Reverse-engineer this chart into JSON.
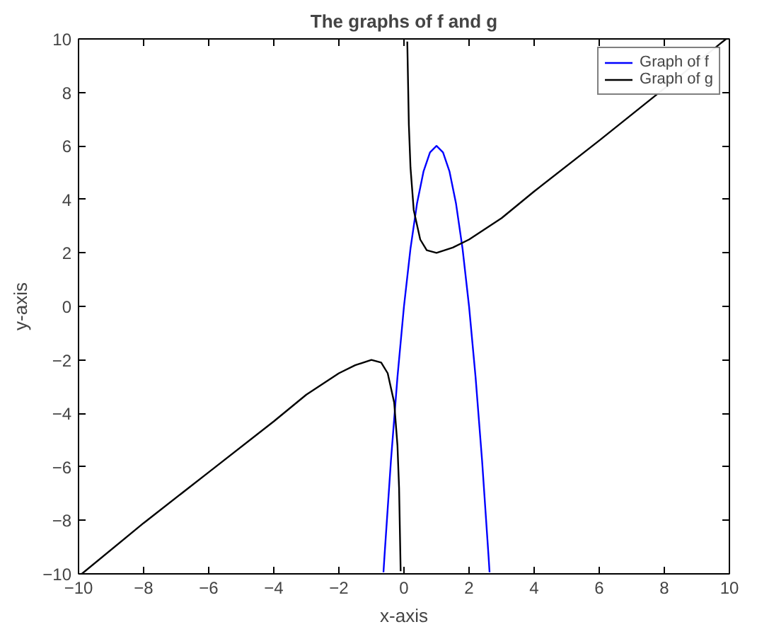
{
  "chart_data": {
    "type": "line",
    "title": "The graphs of f and g",
    "xlabel": "x-axis",
    "ylabel": "y-axis",
    "xlim": [
      -10,
      10
    ],
    "ylim": [
      -10,
      10
    ],
    "xticks": [
      -10,
      -8,
      -6,
      -4,
      -2,
      0,
      2,
      4,
      6,
      8,
      10
    ],
    "yticks": [
      -10,
      -8,
      -6,
      -4,
      -2,
      0,
      2,
      4,
      6,
      8,
      10
    ],
    "grid": false,
    "legend": "top right",
    "marker": "none",
    "line_style": "solid",
    "series": [
      {
        "name": "Graph of f",
        "color": "#0000ff",
        "x": [
          -0.63,
          -0.6,
          -0.4,
          -0.2,
          0,
          0.2,
          0.4,
          0.6,
          0.8,
          1,
          1.2,
          1.4,
          1.6,
          1.8,
          2,
          2.2,
          2.4,
          2.6,
          2.63
        ],
        "values": [
          -9.94,
          -9.36,
          -5.76,
          -2.64,
          0,
          2.16,
          3.84,
          5.04,
          5.76,
          6,
          5.76,
          5.04,
          3.84,
          2.16,
          0,
          -2.64,
          -5.76,
          -9.36,
          -9.94
        ]
      },
      {
        "name": "Graph of g",
        "color": "#000000",
        "x": [
          -9.9,
          -8,
          -6,
          -4,
          -3,
          -2,
          -1.5,
          -1,
          -0.7,
          -0.5,
          -0.3,
          -0.2,
          -0.15,
          -0.102,
          0,
          0.102,
          0.15,
          0.2,
          0.3,
          0.5,
          0.7,
          1,
          1.5,
          2,
          3,
          4,
          6,
          9.9
        ],
        "values": [
          -10.0,
          -8.1,
          -6.2,
          -4.3,
          -3.3,
          -2.5,
          -2.2,
          -2.0,
          -2.1,
          -2.5,
          -3.6,
          -5.2,
          -6.8,
          -9.9,
          null,
          9.9,
          6.8,
          5.2,
          3.6,
          2.5,
          2.1,
          2.0,
          2.2,
          2.5,
          3.3,
          4.3,
          6.2,
          10.0
        ]
      }
    ]
  }
}
